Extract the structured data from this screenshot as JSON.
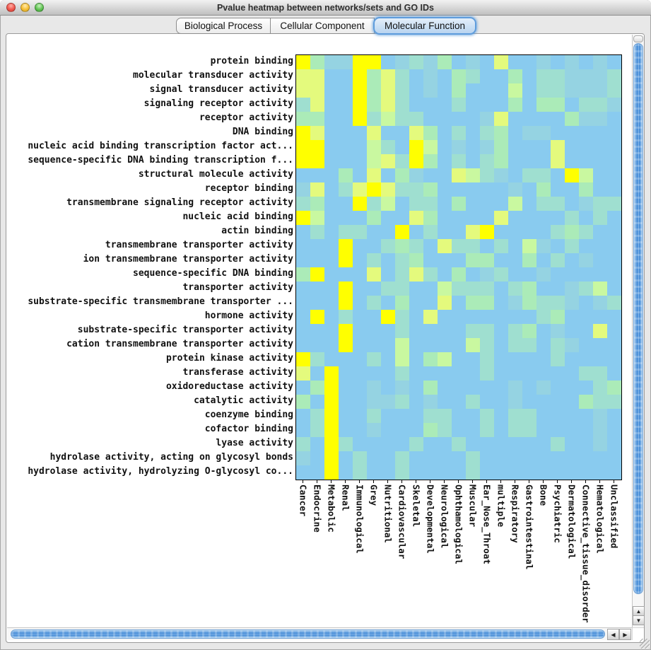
{
  "window": {
    "title": "Pvalue heatmap between networks/sets and GO IDs"
  },
  "titlebar_buttons": {
    "close_color": "#EE6156",
    "minimize_color": "#F5BF4F",
    "zoom_color": "#61C354"
  },
  "tabs": [
    {
      "label": "Biological Process",
      "selected": false
    },
    {
      "label": "Cellular Component",
      "selected": false
    },
    {
      "label": "Molecular Function",
      "selected": true
    }
  ],
  "colors": {
    "selected_tab_ring": "#5E9CDC",
    "selected_tab_fill": "#BBD5F0",
    "window_chrome": "#E8E8E8",
    "scrollbar_thumb_blue": "#4D90D9",
    "heatmap_axis": "#000000"
  },
  "scrollbar_icons": {
    "up": "▲",
    "down": "▼",
    "left": "◀",
    "right": "▶"
  },
  "chart_data": {
    "type": "heatmap",
    "title": "Pvalue heatmap between networks/sets and GO IDs",
    "rows": [
      "protein binding",
      "molecular transducer activity",
      "signal transducer activity",
      "signaling receptor activity",
      "receptor activity",
      "DNA binding",
      "nucleic acid binding transcription factor act...",
      "sequence-specific DNA binding transcription f...",
      "structural molecule activity",
      "receptor binding",
      "transmembrane signaling receptor activity",
      "nucleic acid binding",
      "actin binding",
      "transmembrane transporter activity",
      "ion transmembrane transporter activity",
      "sequence-specific DNA binding",
      "transporter activity",
      "substrate-specific transmembrane transporter ...",
      "hormone activity",
      "substrate-specific transporter activity",
      "cation transmembrane transporter activity",
      "protein kinase activity",
      "transferase activity",
      "oxidoreductase activity",
      "catalytic activity",
      "coenzyme binding",
      "cofactor binding",
      "lyase activity",
      "hydrolase activity, acting on glycosyl bonds",
      "hydrolase activity, hydrolyzing O-glycosyl co..."
    ],
    "columns": [
      "Cancer",
      "Endocrine",
      "Metabolic",
      "Renal",
      "Immunological",
      "Grey",
      "Nutritional",
      "Cardiovascular",
      "Skeletal",
      "Developmental",
      "Neurological",
      "Ophthamological",
      "Muscular",
      "Ear_Nose_Throat",
      "multiple",
      "Respiratory",
      "Gastrointestinal",
      "Bone",
      "Psychiatric",
      "Dermatological",
      "Connective_tissue_disorder",
      "Hematological",
      "Unclassified"
    ],
    "palette": {
      "b": "#89CBEF",
      "s": "#95D3E2",
      "t": "#9FDFD0",
      "g": "#ABEBB8",
      "G": "#C9F8A0",
      "y": "#E4FA7D",
      "Y": "#FFFF00"
    },
    "cells": [
      "YgssYYbstsgbsbybbsbsbsb",
      "yybbYgytbsbgtbbgbttssst",
      "yybbYgytbsbgbbbGbttssst",
      "tybbYgytbbbtbbbgbggbtts",
      "ggbbYtGttbbbbsybbbbgssb",
      "Yybbbybbygbtbtgbssbbbbb",
      "YYbbbGtbYGbsbsgbbbybbbb",
      "YYbbbGytYgbtbtgbbbybbbb",
      "bbbgbybgsbbyGtsbttbYGbb",
      "sybtyYyttgbbbbbsbgbbgbb",
      "tgbbYtGbttbgbbbGbttbstt",
      "YGbbbgbbygbbbbybbbbtbtb",
      "btbttbbYbtbbyYbbbbtgtbb",
      "bbbYbbtgtbyttbtbGsbtbbb",
      "bbbYbtbtgbbbggbbgbtbsbb",
      "gYbbbybtytbgbstbbsbbbbb",
      "bbbYbbttbbGtttbtgbbstGb",
      "bbbYbtbgbbybggbsgttsbst",
      "bYbtbbYtbybbbbbbbtgbbbb",
      "bbbYbbbtbbbbttbtgbsbbyb",
      "bbbYbbbGbbbbGtbttbtsbbb",
      "YtbbbtbGbgGbbtbbbbtbbbb",
      "ybYbbbbtbbbbbtbbbbbbttb",
      "bgYbbsbsbgbbbbbsbsbbbtg",
      "gbYbbsstbsbbtbbsbbbbgtt",
      "btYbbtbbbttbbtbttbbbbsb",
      "btYbbsbbbgtbbtbttbbbbsb",
      "tbYtbbbbtbbtbbbbbbtbbsb",
      "sbYbtbbtbbbbtbbbbbbbbbb",
      "bbYbtbbtbbbbtbbbbbbbbbb"
    ]
  }
}
